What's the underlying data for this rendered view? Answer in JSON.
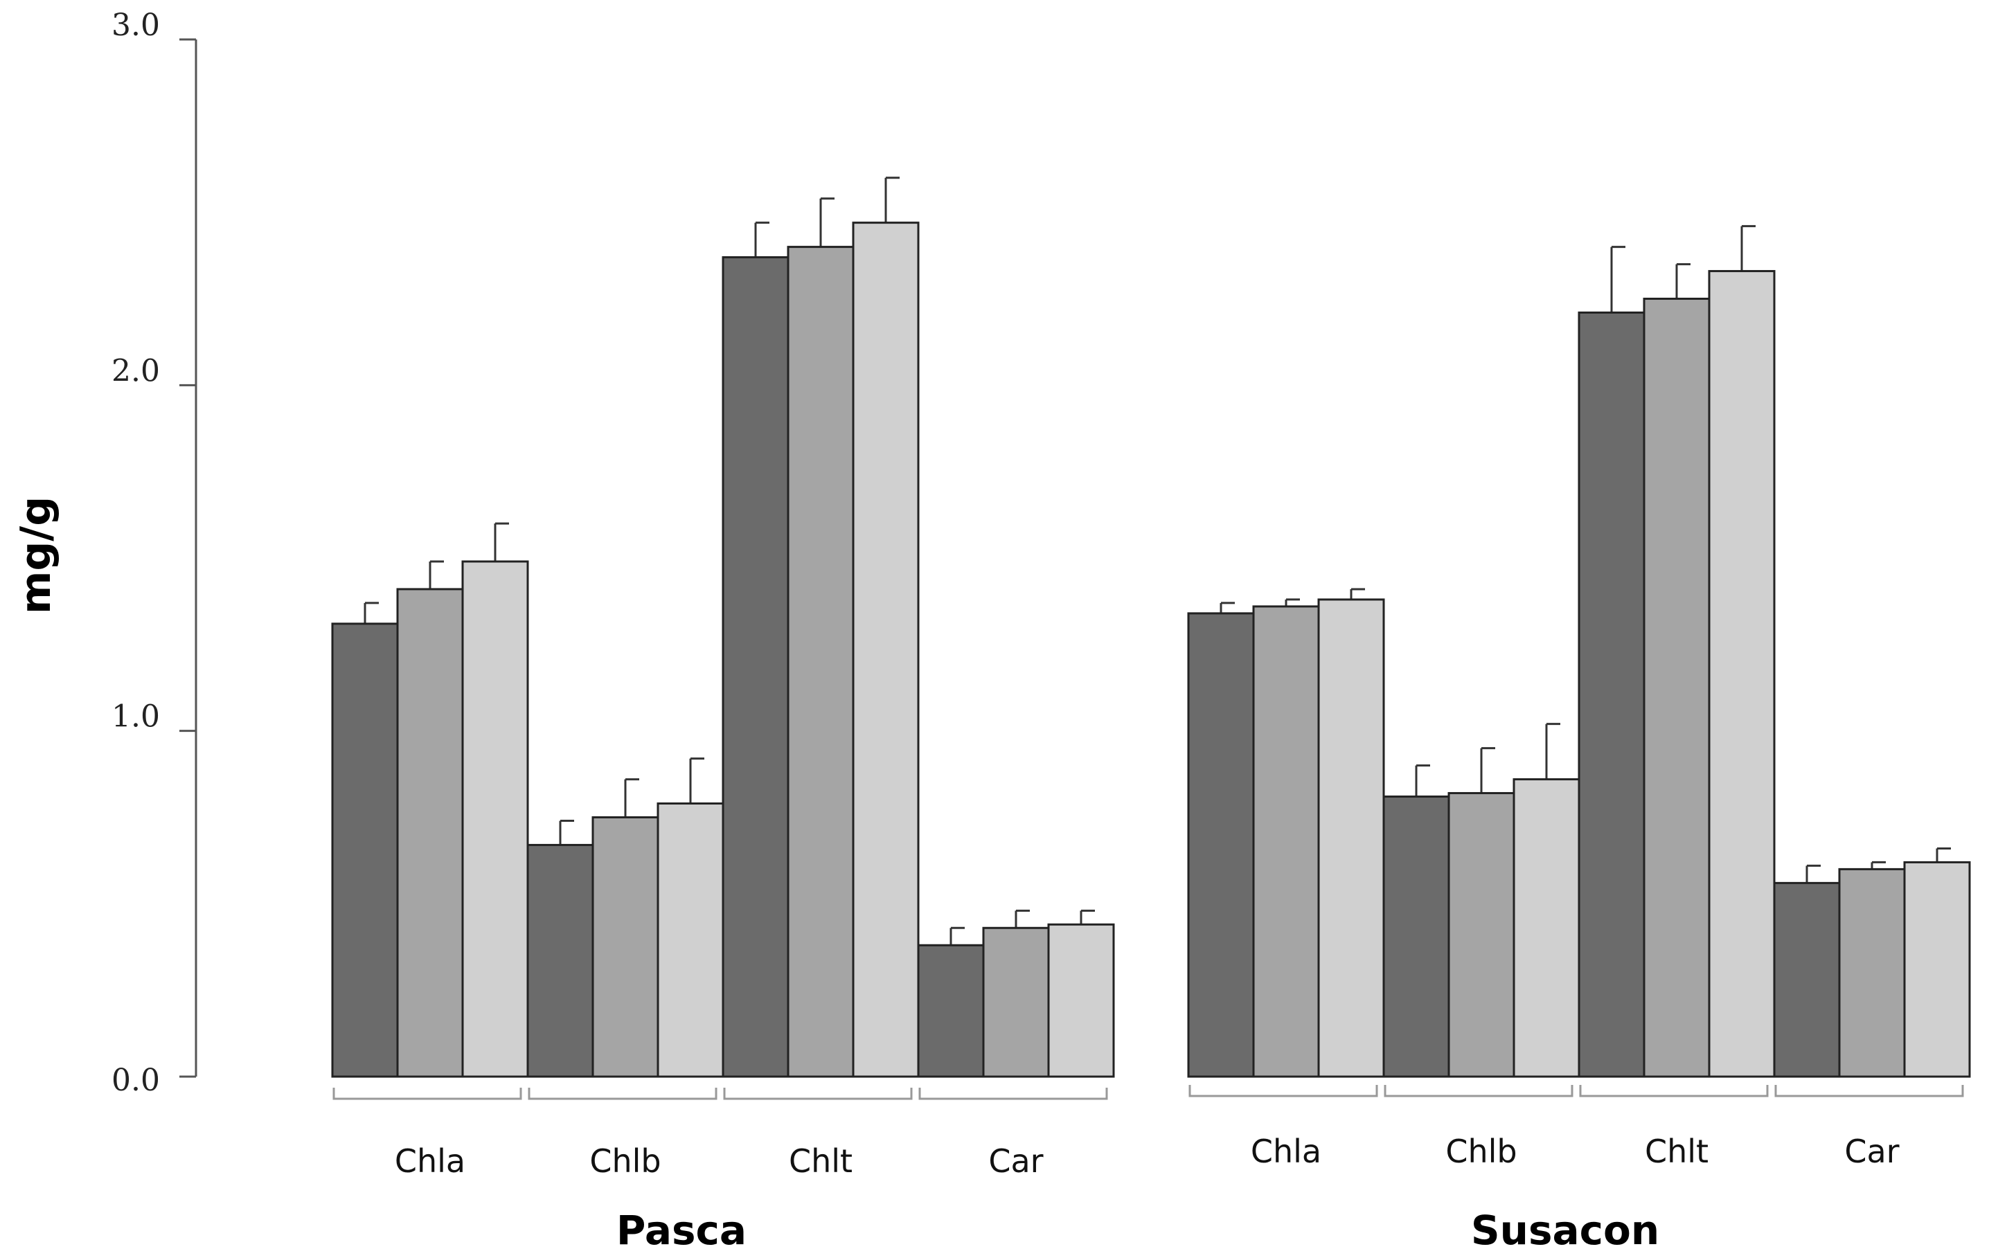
{
  "chart_data": {
    "type": "bar",
    "title": "",
    "ylabel": "mg/g",
    "ylim": [
      0,
      3.0
    ],
    "yticks": [
      0.0,
      1.0,
      2.0,
      3.0
    ],
    "ytick_labels": [
      "0.0",
      "1.0",
      "2.0",
      "3.0"
    ],
    "series_count": 3,
    "series_colors": [
      "#6b6b6b",
      "#a5a5a5",
      "#d0d0d0"
    ],
    "groups": [
      {
        "name": "Pasca",
        "categories": [
          {
            "label": "Chla",
            "values": [
              1.31,
              1.41,
              1.49
            ],
            "errors": [
              0.06,
              0.08,
              0.11
            ]
          },
          {
            "label": "Chlb",
            "values": [
              0.67,
              0.75,
              0.79
            ],
            "errors": [
              0.07,
              0.11,
              0.13
            ]
          },
          {
            "label": "Chlt",
            "values": [
              2.37,
              2.4,
              2.47
            ],
            "errors": [
              0.1,
              0.14,
              0.13
            ]
          },
          {
            "label": "Car",
            "values": [
              0.38,
              0.43,
              0.44
            ],
            "errors": [
              0.05,
              0.05,
              0.04
            ]
          }
        ]
      },
      {
        "name": "Susacon",
        "categories": [
          {
            "label": "Chla",
            "values": [
              1.34,
              1.36,
              1.38
            ],
            "errors": [
              0.03,
              0.02,
              0.03
            ]
          },
          {
            "label": "Chlb",
            "values": [
              0.81,
              0.82,
              0.86
            ],
            "errors": [
              0.09,
              0.13,
              0.16
            ]
          },
          {
            "label": "Chlt",
            "values": [
              2.21,
              2.25,
              2.33
            ],
            "errors": [
              0.19,
              0.1,
              0.13
            ]
          },
          {
            "label": "Car",
            "values": [
              0.56,
              0.6,
              0.62
            ],
            "errors": [
              0.05,
              0.02,
              0.04
            ]
          }
        ]
      }
    ]
  }
}
